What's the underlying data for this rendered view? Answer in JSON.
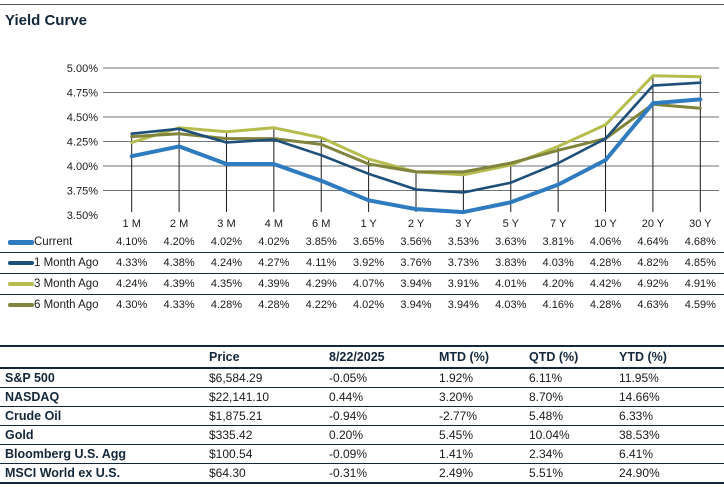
{
  "title": "Yield Curve",
  "colors": {
    "current": "#2e7bc0",
    "month1": "#1d4f7a",
    "month3": "#b6bc4e",
    "month6": "#80843c",
    "grid_line": "#6e757c",
    "tick_line": "#1a1a1a",
    "text_dark": "#14273a",
    "text_body": "#1a1a1a",
    "top_rule": "#4d545a"
  },
  "chart_data": {
    "type": "line",
    "title": "Yield Curve",
    "categories": [
      "1 M",
      "2 M",
      "3 M",
      "4 M",
      "6 M",
      "1 Y",
      "2 Y",
      "3 Y",
      "5 Y",
      "7 Y",
      "10 Y",
      "20 Y",
      "30 Y"
    ],
    "y_tick_labels": [
      "5.00%",
      "4.75%",
      "4.50%",
      "4.25%",
      "4.00%",
      "3.75%",
      "3.50%"
    ],
    "y_tick_values": [
      5.0,
      4.75,
      4.5,
      4.25,
      4.0,
      3.75,
      3.5
    ],
    "ylim": [
      3.5,
      5.0
    ],
    "grid": "horizontal-on, vertical-drop-lines-to-max",
    "legend_position": "table-below-left",
    "series": [
      {
        "name": "Current",
        "color_key": "current",
        "stroke_width": 4,
        "values": [
          4.1,
          4.2,
          4.02,
          4.02,
          3.85,
          3.65,
          3.56,
          3.53,
          3.63,
          3.81,
          4.06,
          4.64,
          4.68
        ],
        "labels": [
          "4.10%",
          "4.20%",
          "4.02%",
          "4.02%",
          "3.85%",
          "3.65%",
          "3.56%",
          "3.53%",
          "3.63%",
          "3.81%",
          "4.06%",
          "4.64%",
          "4.68%"
        ]
      },
      {
        "name": "1 Month Ago",
        "color_key": "month1",
        "stroke_width": 2.6,
        "values": [
          4.33,
          4.38,
          4.24,
          4.27,
          4.11,
          3.92,
          3.76,
          3.73,
          3.83,
          4.03,
          4.28,
          4.82,
          4.85
        ],
        "labels": [
          "4.33%",
          "4.38%",
          "4.24%",
          "4.27%",
          "4.11%",
          "3.92%",
          "3.76%",
          "3.73%",
          "3.83%",
          "4.03%",
          "4.28%",
          "4.82%",
          "4.85%"
        ]
      },
      {
        "name": "3 Month Ago",
        "color_key": "month3",
        "stroke_width": 3,
        "values": [
          4.24,
          4.39,
          4.35,
          4.39,
          4.29,
          4.07,
          3.94,
          3.91,
          4.01,
          4.2,
          4.42,
          4.92,
          4.91
        ],
        "labels": [
          "4.24%",
          "4.39%",
          "4.35%",
          "4.39%",
          "4.29%",
          "4.07%",
          "3.94%",
          "3.91%",
          "4.01%",
          "4.20%",
          "4.42%",
          "4.92%",
          "4.91%"
        ]
      },
      {
        "name": "6 Month Ago",
        "color_key": "month6",
        "stroke_width": 3,
        "values": [
          4.3,
          4.33,
          4.28,
          4.28,
          4.22,
          4.02,
          3.94,
          3.94,
          4.03,
          4.16,
          4.28,
          4.63,
          4.59
        ],
        "labels": [
          "4.30%",
          "4.33%",
          "4.28%",
          "4.28%",
          "4.22%",
          "4.02%",
          "3.94%",
          "3.94%",
          "4.03%",
          "4.16%",
          "4.28%",
          "4.63%",
          "4.59%"
        ]
      }
    ],
    "z_order": [
      2,
      3,
      1,
      0
    ]
  },
  "market_table": {
    "headers": [
      "",
      "Price",
      "8/22/2025",
      "MTD (%)",
      "QTD (%)",
      "YTD (%)"
    ],
    "rows": [
      {
        "label": "S&P 500",
        "cells": [
          "$6,584.29",
          "-0.05%",
          "1.92%",
          "6.11%",
          "11.95%"
        ]
      },
      {
        "label": "NASDAQ",
        "cells": [
          "$22,141.10",
          "0.44%",
          "3.20%",
          "8.70%",
          "14.66%"
        ]
      },
      {
        "label": "Crude Oil",
        "cells": [
          "$1,875.21",
          "-0.94%",
          "-2.77%",
          "5.48%",
          "6.33%"
        ]
      },
      {
        "label": "Gold",
        "cells": [
          "$335.42",
          "0.20%",
          "5.45%",
          "10.04%",
          "38.53%"
        ]
      },
      {
        "label": "Bloomberg U.S. Agg",
        "cells": [
          "$100.54",
          "-0.09%",
          "1.41%",
          "2.34%",
          "6.41%"
        ]
      },
      {
        "label": "MSCI World ex U.S.",
        "cells": [
          "$64.30",
          "-0.31%",
          "2.49%",
          "5.51%",
          "24.90%"
        ]
      }
    ]
  }
}
